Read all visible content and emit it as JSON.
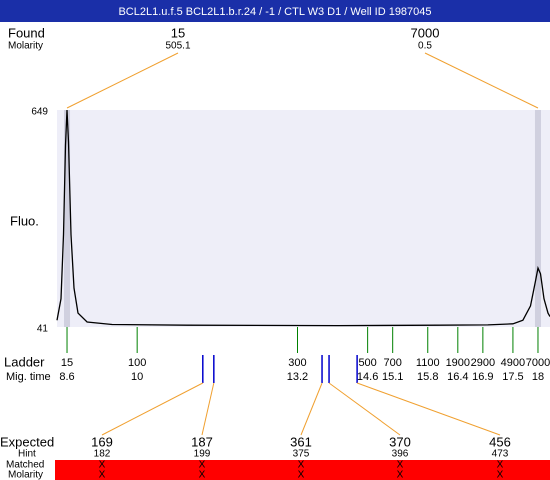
{
  "chart_data": {
    "type": "electropherogram",
    "title": "BCL2L1.u.f.5  BCL2L1.b.r.24 / -1 / CTL W3 D1 / Well ID 1987045",
    "ylabel": "Fluo.",
    "ylim": [
      41,
      649
    ],
    "yticks": [
      649,
      41
    ],
    "xlim": [
      8.4,
      18.24
    ],
    "trace": {
      "color": "#000000",
      "x": [
        8.4,
        8.48,
        8.53,
        8.57,
        8.6,
        8.63,
        8.68,
        8.74,
        8.82,
        9.0,
        9.5,
        11,
        14,
        16,
        17,
        17.5,
        17.7,
        17.85,
        17.95,
        18.0,
        18.05,
        18.12,
        18.2,
        18.24
      ],
      "values": [
        60,
        120,
        300,
        550,
        649,
        560,
        300,
        150,
        80,
        55,
        48,
        46,
        45,
        46,
        47,
        50,
        60,
        100,
        170,
        206,
        190,
        120,
        80,
        70
      ]
    },
    "found": {
      "label": "Found",
      "molarity_label": "Molarity",
      "sizes": [
        15,
        7000
      ],
      "molarity": [
        505.1,
        0.5
      ]
    },
    "ladder": {
      "label": "Ladder",
      "time_label": "Mig. time",
      "color": "#008000",
      "sizes": [
        15,
        100,
        300,
        500,
        700,
        1100,
        1900,
        2900,
        4900,
        7000
      ],
      "times": [
        8.6,
        10,
        13.2,
        14.6,
        15.1,
        15.8,
        16.4,
        16.9,
        17.5,
        18
      ]
    },
    "expected": {
      "label": "Expected",
      "hint_label": "Hint",
      "matched_label": "Matched",
      "molarity_label": "Molarity",
      "marker_color": "#0000cc",
      "bar_color": "#ff0000",
      "sizes": [
        169,
        187,
        361,
        370,
        456
      ],
      "times": [
        11.31,
        11.53,
        13.69,
        13.83,
        14.39
      ],
      "hint": [
        182,
        199,
        375,
        396,
        473
      ],
      "matched": [
        "X",
        "X",
        "X",
        "X",
        "X"
      ],
      "molarity": [
        "X",
        "X",
        "X",
        "X",
        "X"
      ]
    }
  }
}
